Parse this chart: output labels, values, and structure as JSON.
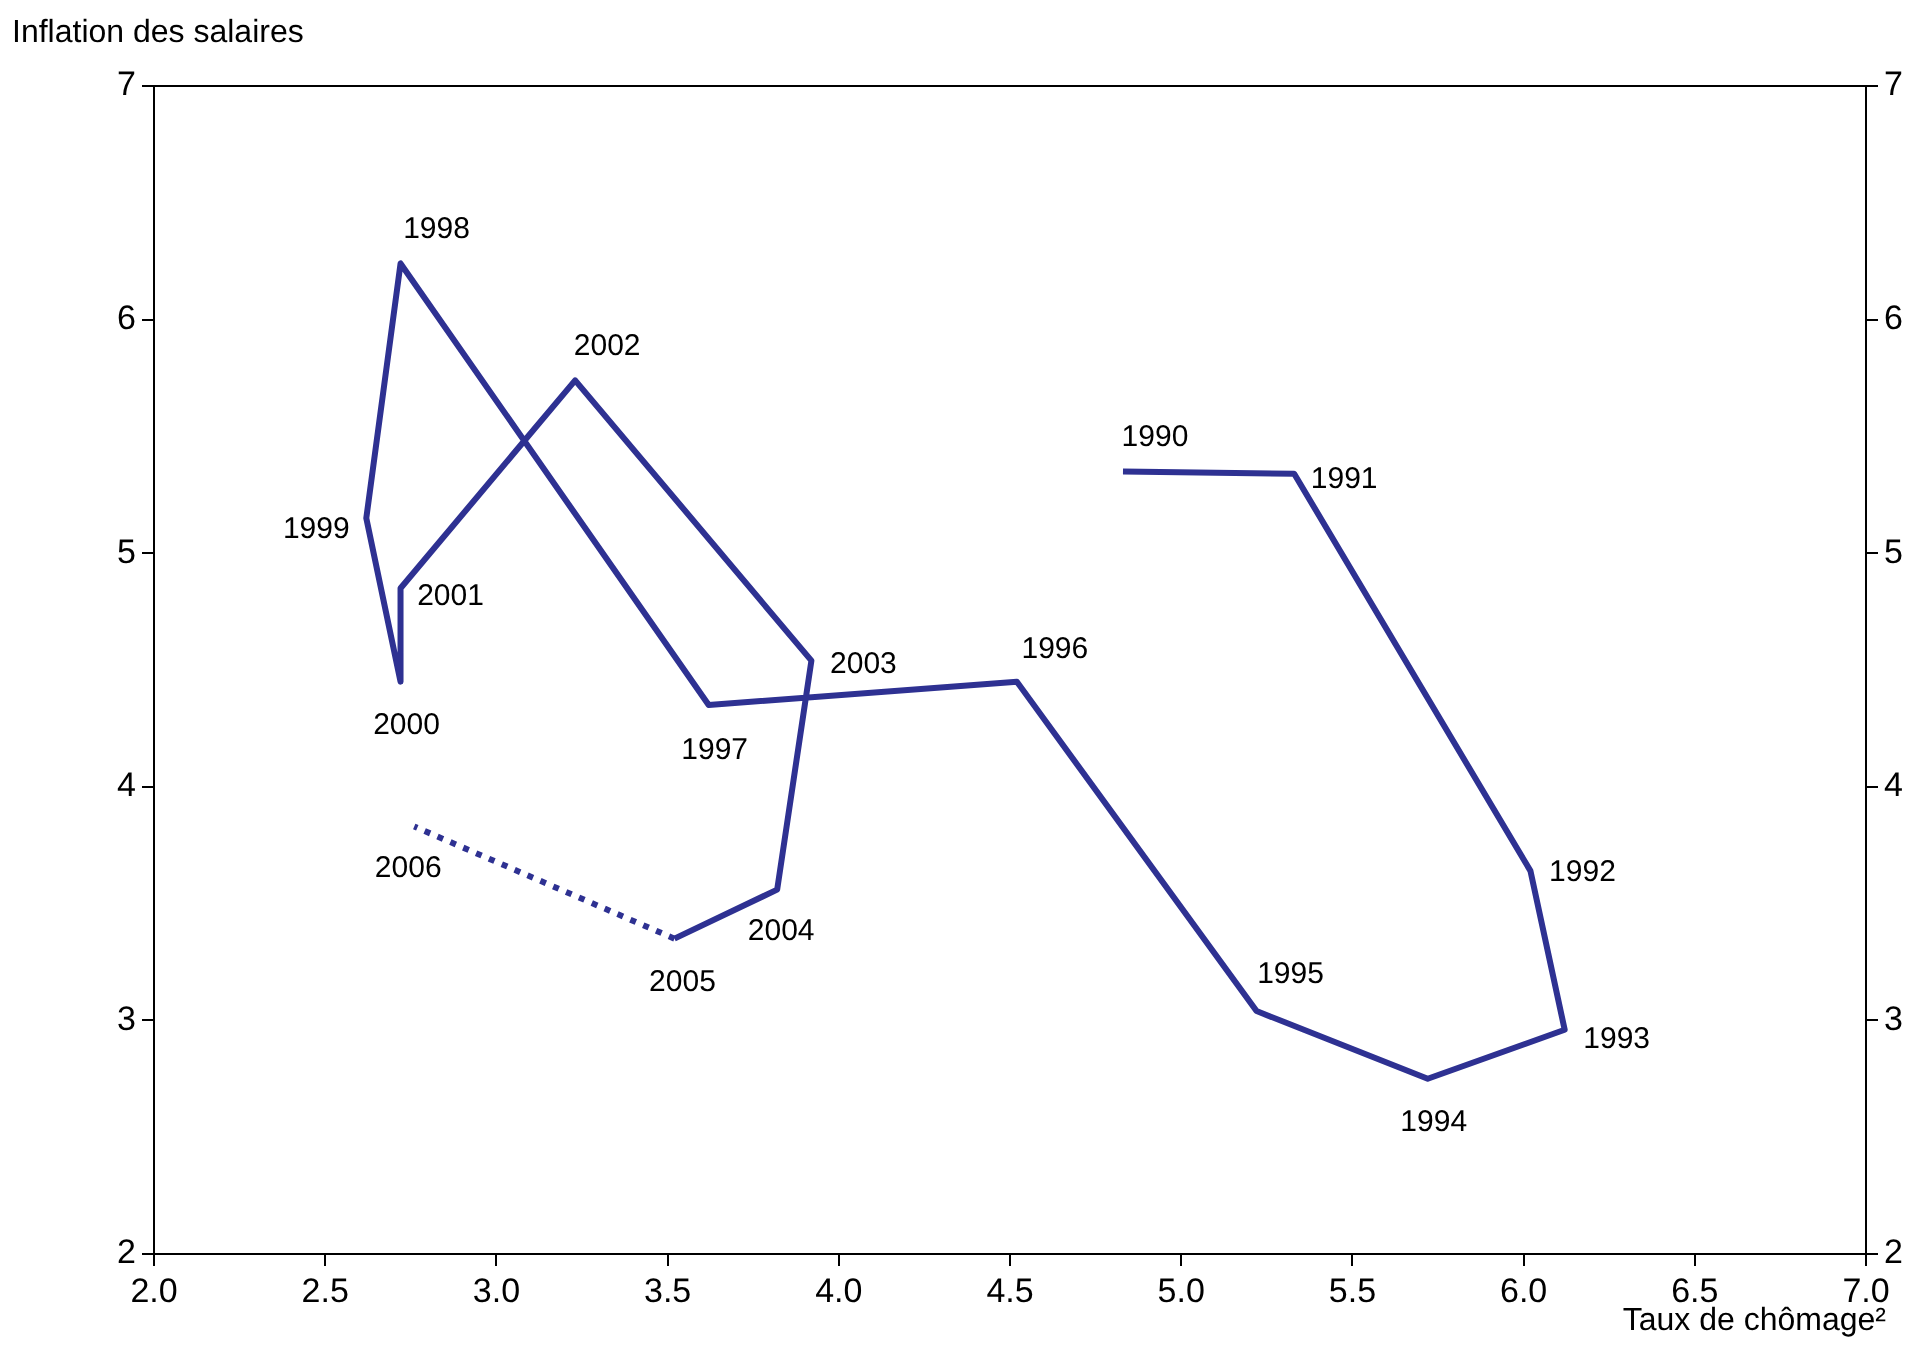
{
  "chart_data": {
    "type": "line",
    "ylabel": "Inflation des salaires",
    "xlabel": "Taux de chômage²",
    "xlim": [
      2,
      7
    ],
    "xticks": [
      {
        "value": 2,
        "label": "2.0"
      },
      {
        "value": 2.5,
        "label": "2.5"
      },
      {
        "value": 3,
        "label": "3.0"
      },
      {
        "value": 3.5,
        "label": "3.5"
      },
      {
        "value": 4,
        "label": "4.0"
      },
      {
        "value": 4.5,
        "label": "4.5"
      },
      {
        "value": 5,
        "label": "5.0"
      },
      {
        "value": 5.5,
        "label": "5.5"
      },
      {
        "value": 6,
        "label": "6.0"
      },
      {
        "value": 6.5,
        "label": "6.5"
      },
      {
        "value": 7,
        "label": "7.0"
      }
    ],
    "ylim": [
      2,
      7
    ],
    "yticks": [
      2,
      3,
      4,
      5,
      6,
      7
    ],
    "y2lim": [
      2,
      7
    ],
    "y2ticks": [
      2,
      3,
      4,
      5,
      6,
      7
    ],
    "grid": false,
    "legend": false,
    "marker": "none",
    "series": [
      {
        "color": "#2e3192",
        "line_style": "solid",
        "x": [
          4.83,
          5.33,
          6.02,
          6.12,
          5.72,
          5.22,
          4.52,
          3.62,
          2.72,
          2.62,
          2.72,
          2.72,
          3.23,
          3.92,
          3.82,
          3.52
        ],
        "values": [
          5.35,
          5.34,
          3.64,
          2.96,
          2.75,
          3.04,
          4.45,
          4.35,
          6.24,
          5.15,
          4.45,
          4.85,
          5.74,
          4.54,
          3.56,
          3.35
        ]
      },
      {
        "color": "#2e3192",
        "line_style": "dotted",
        "x": [
          3.52,
          2.76
        ],
        "values": [
          3.35,
          3.83
        ]
      }
    ],
    "annotations": [
      {
        "text": "1990",
        "x": 4.83,
        "y": 5.35
      },
      {
        "text": "1991",
        "x": 5.33,
        "y": 5.34
      },
      {
        "text": "1992",
        "x": 6.02,
        "y": 3.64
      },
      {
        "text": "1993",
        "x": 6.12,
        "y": 2.96
      },
      {
        "text": "1994",
        "x": 5.72,
        "y": 2.75
      },
      {
        "text": "1995",
        "x": 5.22,
        "y": 3.04
      },
      {
        "text": "1996",
        "x": 4.52,
        "y": 4.45
      },
      {
        "text": "1997",
        "x": 3.62,
        "y": 4.35
      },
      {
        "text": "1998",
        "x": 2.72,
        "y": 6.24
      },
      {
        "text": "1999",
        "x": 2.62,
        "y": 5.15
      },
      {
        "text": "2000",
        "x": 2.72,
        "y": 4.45
      },
      {
        "text": "2001",
        "x": 2.72,
        "y": 4.85
      },
      {
        "text": "2002",
        "x": 3.23,
        "y": 5.74
      },
      {
        "text": "2003",
        "x": 3.92,
        "y": 4.54
      },
      {
        "text": "2004",
        "x": 3.82,
        "y": 3.56
      },
      {
        "text": "2005",
        "x": 3.52,
        "y": 3.35
      },
      {
        "text": "2006",
        "x": 2.76,
        "y": 3.83
      }
    ]
  }
}
